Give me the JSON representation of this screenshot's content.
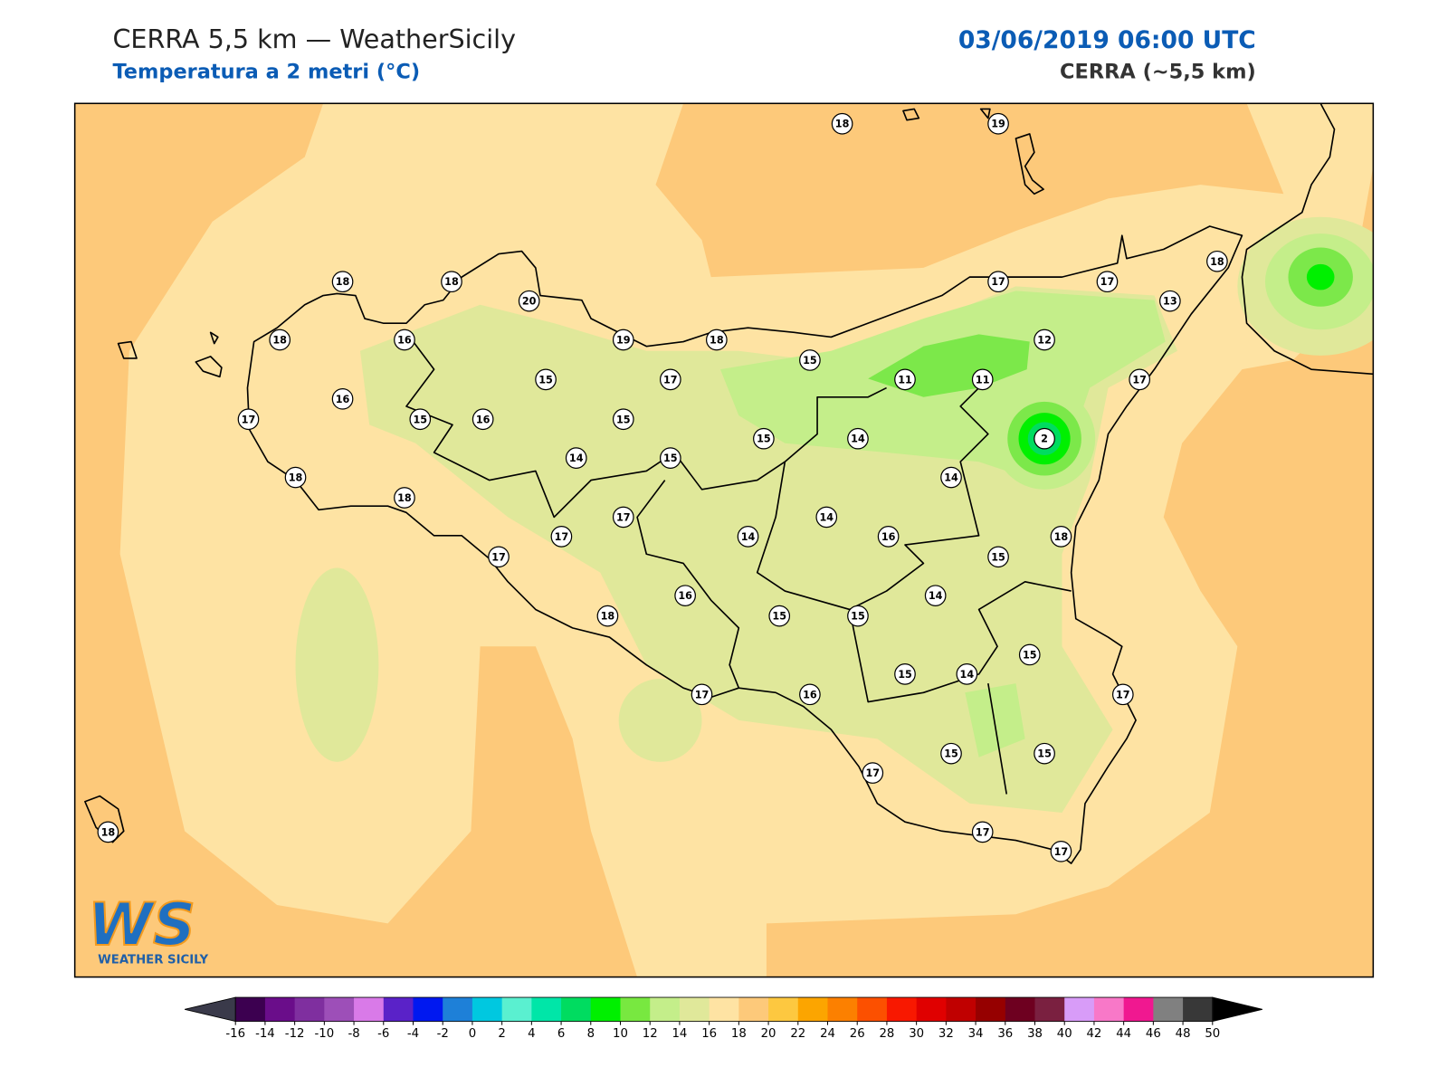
{
  "header": {
    "title": "CERRA 5,5 km — WeatherSicily",
    "subtitle": "Temperatura a 2 metri (°C)",
    "valid_time": "03/06/2019 06:00 UTC",
    "model": "CERRA (~5,5 km)"
  },
  "stations": [
    18,
    19,
    18,
    18,
    20,
    18,
    16,
    19,
    18,
    15,
    17,
    17,
    18,
    13,
    12,
    11,
    11,
    17,
    15,
    17,
    16,
    17,
    15,
    16,
    15,
    15,
    14,
    2,
    14,
    15,
    14,
    18,
    18,
    17,
    17,
    14,
    14,
    16,
    18,
    17,
    15,
    16,
    14,
    18,
    15,
    15,
    15,
    15,
    14,
    17,
    16,
    17,
    17,
    15,
    15,
    17,
    17,
    18
  ],
  "colorbar": {
    "ticks": [
      -16,
      -14,
      -12,
      -10,
      -8,
      -6,
      -4,
      -2,
      0,
      2,
      4,
      6,
      8,
      10,
      12,
      14,
      16,
      18,
      20,
      22,
      24,
      26,
      28,
      30,
      32,
      34,
      36,
      38,
      40,
      42,
      44,
      46,
      48,
      50
    ],
    "colors": [
      "#3c0050",
      "#6a0d8a",
      "#7f2f9f",
      "#9d4fb8",
      "#d97ae8",
      "#5a22c8",
      "#0018f0",
      "#1e80d8",
      "#00c8e0",
      "#5af0d0",
      "#00e6a8",
      "#00dc60",
      "#00f000",
      "#78e840",
      "#c4ee8a",
      "#e0e89a",
      "#fee3a3",
      "#fdc97a",
      "#fdc840",
      "#fca500",
      "#fc8000",
      "#fc5000",
      "#f81800",
      "#e00000",
      "#c00000",
      "#960000",
      "#6e0020",
      "#7a2040",
      "#d89cf8",
      "#f878c8",
      "#f01890",
      "#808080",
      "#383838"
    ],
    "under_color": "#3a3a4a",
    "over_color": "#000000"
  },
  "logo": {
    "mark": "WS",
    "text": "WEATHER SICILY"
  }
}
